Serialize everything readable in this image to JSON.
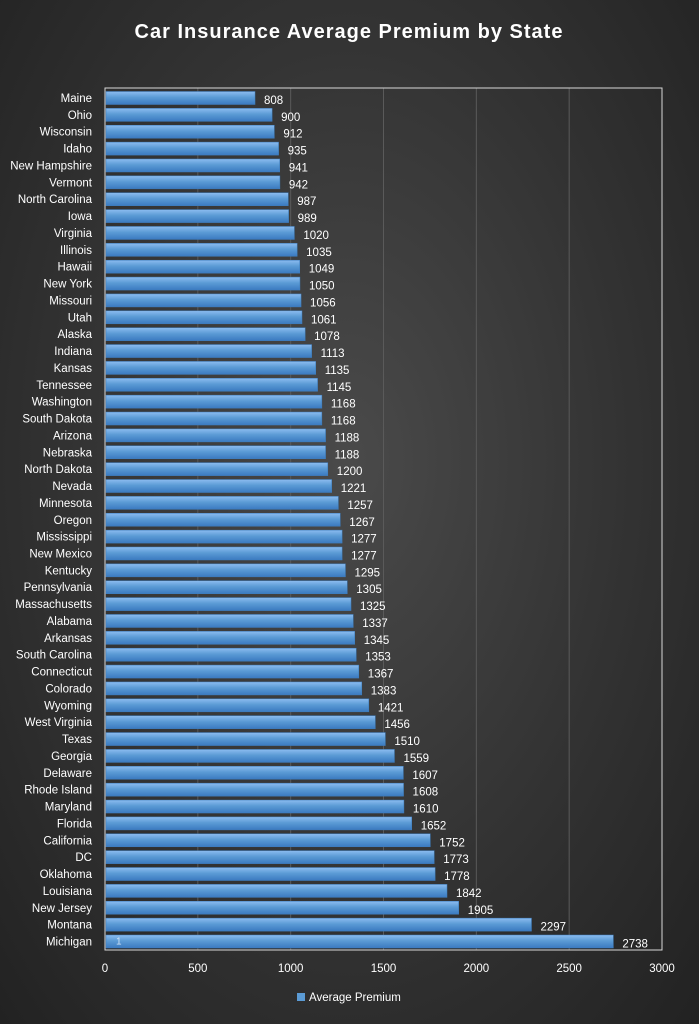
{
  "chart_data": {
    "type": "bar",
    "orientation": "horizontal",
    "title": "Car Insurance Average Premium by State",
    "categories": [
      "Maine",
      "Ohio",
      "Wisconsin",
      "Idaho",
      "New Hampshire",
      "Vermont",
      "North Carolina",
      "Iowa",
      "Virginia",
      "Illinois",
      "Hawaii",
      "New York",
      "Missouri",
      "Utah",
      "Alaska",
      "Indiana",
      "Kansas",
      "Tennessee",
      "Washington",
      "South Dakota",
      "Arizona",
      "Nebraska",
      "North Dakota",
      "Nevada",
      "Minnesota",
      "Oregon",
      "Mississippi",
      "New Mexico",
      "Kentucky",
      "Pennsylvania",
      "Massachusetts",
      "Alabama",
      "Arkansas",
      "South Carolina",
      "Connecticut",
      "Colorado",
      "Wyoming",
      "West Virginia",
      "Texas",
      "Georgia",
      "Delaware",
      "Rhode Island",
      "Maryland",
      "Florida",
      "California",
      "DC",
      "Oklahoma",
      "Louisiana",
      "New Jersey",
      "Montana",
      "Michigan"
    ],
    "series": [
      {
        "name": "Average Premium",
        "values": [
          808,
          900,
          912,
          935,
          941,
          942,
          987,
          989,
          1020,
          1035,
          1049,
          1050,
          1056,
          1061,
          1078,
          1113,
          1135,
          1145,
          1168,
          1168,
          1188,
          1188,
          1200,
          1221,
          1257,
          1267,
          1277,
          1277,
          1295,
          1305,
          1325,
          1337,
          1345,
          1353,
          1367,
          1383,
          1421,
          1456,
          1510,
          1559,
          1607,
          1608,
          1610,
          1652,
          1752,
          1773,
          1778,
          1842,
          1905,
          2297,
          2738
        ]
      }
    ],
    "xlim": [
      0,
      3000
    ],
    "x_ticks": [
      "0",
      "500",
      "1000",
      "1500",
      "2000",
      "2500",
      "3000"
    ],
    "grid": true,
    "legend_position": "bottom",
    "inner_annotation": "1",
    "colors": {
      "bar_top": "#6fa8e6",
      "bar_bottom": "#3b7ac0",
      "legend_swatch": "#5b9bd5"
    }
  }
}
